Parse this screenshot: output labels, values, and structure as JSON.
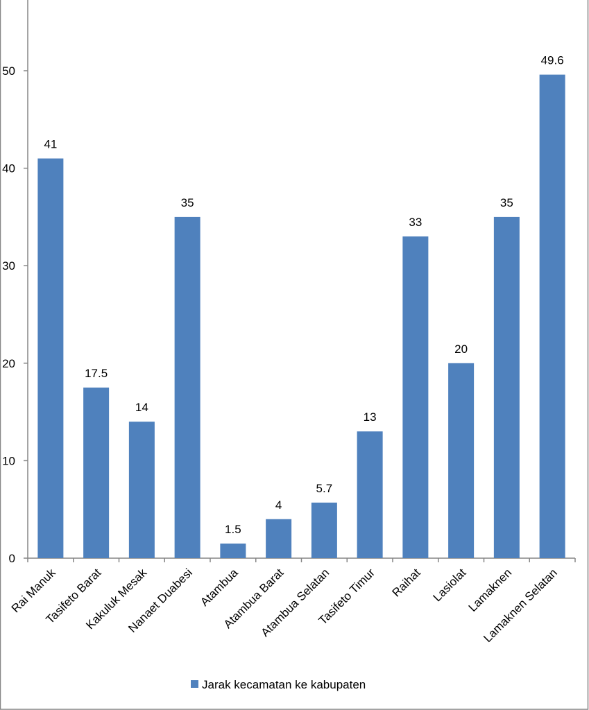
{
  "chart_data": {
    "type": "bar",
    "categories": [
      "Rai Manuk",
      "Tasifeto Barat",
      "Kakuluk Mesak",
      "Nanaet Duabesi",
      "Atambua",
      "Atambua Barat",
      "Atambua Selatan",
      "Tasifeto Timur",
      "Raihat",
      "Lasiolat",
      "Lamaknen",
      "Lamaknen Selatan"
    ],
    "series": [
      {
        "name": "Jarak kecamatan ke kabupaten",
        "values": [
          41,
          17.5,
          14,
          35,
          1.5,
          4,
          5.7,
          13,
          33,
          20,
          35,
          49.6
        ],
        "labels": [
          "41",
          "17.5",
          "14",
          "35",
          "1.5",
          "4",
          "5.7",
          "13",
          "33",
          "20",
          "35",
          "49.6"
        ]
      }
    ],
    "yticks": [
      "0",
      "10",
      "20",
      "30",
      "40",
      "50"
    ],
    "ylim": [
      0,
      57
    ],
    "grid": false,
    "legend_position": "bottom",
    "colors": {
      "bar": "#4F81BD",
      "axis": "#868686",
      "frame": "#868686"
    }
  }
}
